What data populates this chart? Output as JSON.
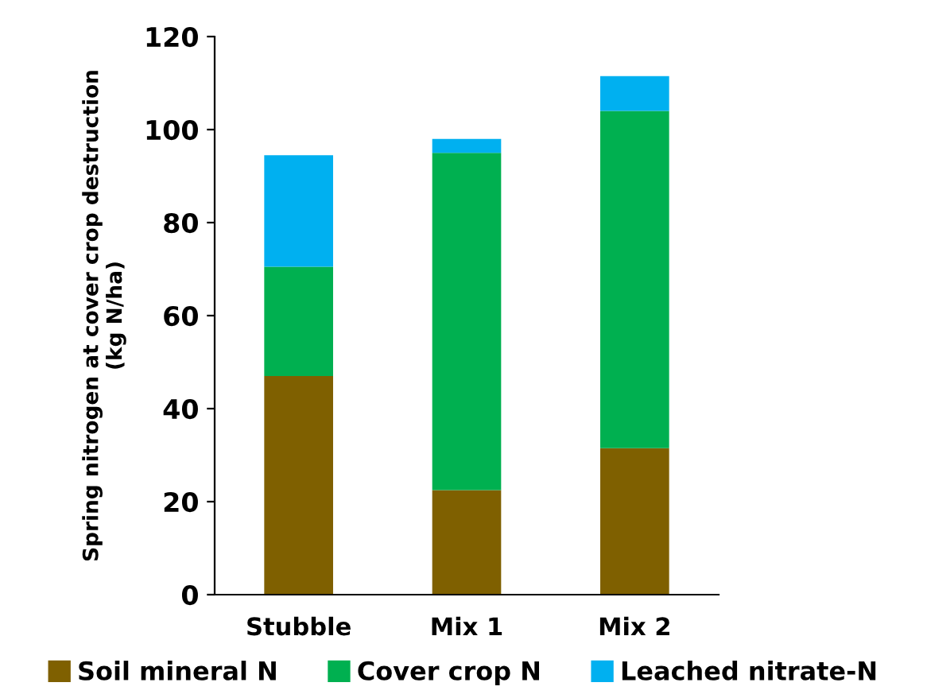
{
  "chart_data": {
    "type": "bar",
    "stacked": true,
    "ylabel": "Spring nitrogen at cover crop destruction\n(kg N/ha)",
    "categories": [
      "Stubble",
      "Mix 1",
      "Mix 2"
    ],
    "series": [
      {
        "name": "Soil mineral N",
        "color": "#7f6000",
        "values": [
          47,
          22.5,
          31.5
        ]
      },
      {
        "name": "Cover crop N",
        "color": "#00b050",
        "values": [
          23.5,
          72.5,
          72.5
        ]
      },
      {
        "name": "Leached nitrate-N",
        "color": "#00b0f0",
        "values": [
          24,
          3,
          7.5
        ]
      }
    ],
    "ylim": [
      0,
      120
    ],
    "yticks": [
      0,
      20,
      40,
      60,
      80,
      100,
      120
    ],
    "grid": false,
    "legend": "bottom"
  }
}
